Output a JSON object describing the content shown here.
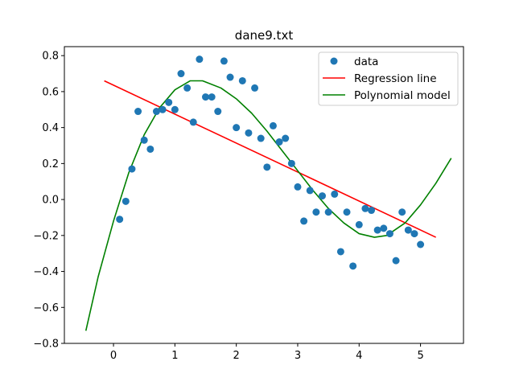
{
  "chart_data": {
    "type": "scatter",
    "title": "dane9.txt",
    "xlabel": "",
    "ylabel": "",
    "xlim": [
      -0.8,
      5.7
    ],
    "ylim": [
      -0.8,
      0.85
    ],
    "x_ticks": [
      0,
      1,
      2,
      3,
      4,
      5
    ],
    "y_ticks": [
      -0.8,
      -0.6,
      -0.4,
      -0.2,
      0.0,
      0.2,
      0.4,
      0.6,
      0.8
    ],
    "x_tick_labels": [
      "0",
      "1",
      "2",
      "3",
      "4",
      "5"
    ],
    "y_tick_labels": [
      "−0.8",
      "−0.6",
      "−0.4",
      "−0.2",
      "0.0",
      "0.2",
      "0.4",
      "0.6",
      "0.8"
    ],
    "grid": false,
    "legend_position": "top-right",
    "series": [
      {
        "name": "data",
        "type": "scatter",
        "color": "#1f77b4",
        "x": [
          0.1,
          0.2,
          0.3,
          0.4,
          0.5,
          0.6,
          0.7,
          0.8,
          0.9,
          1.0,
          1.1,
          1.2,
          1.3,
          1.4,
          1.5,
          1.6,
          1.7,
          1.8,
          1.9,
          2.0,
          2.1,
          2.2,
          2.3,
          2.4,
          2.5,
          2.6,
          2.7,
          2.8,
          2.9,
          3.0,
          3.1,
          3.2,
          3.3,
          3.4,
          3.5,
          3.6,
          3.7,
          3.8,
          3.9,
          4.0,
          4.1,
          4.2,
          4.3,
          4.4,
          4.5,
          4.6,
          4.7,
          4.8,
          4.9,
          5.0
        ],
        "y": [
          -0.11,
          -0.01,
          0.17,
          0.49,
          0.33,
          0.28,
          0.49,
          0.5,
          0.54,
          0.5,
          0.7,
          0.62,
          0.43,
          0.78,
          0.57,
          0.57,
          0.49,
          0.77,
          0.68,
          0.4,
          0.66,
          0.37,
          0.62,
          0.34,
          0.18,
          0.41,
          0.32,
          0.34,
          0.2,
          0.07,
          -0.12,
          0.05,
          -0.07,
          0.02,
          -0.07,
          0.03,
          -0.29,
          -0.07,
          -0.37,
          -0.14,
          -0.05,
          -0.06,
          -0.17,
          -0.16,
          -0.19,
          -0.34,
          -0.07,
          -0.17,
          -0.19,
          -0.25
        ]
      },
      {
        "name": "Regression line",
        "type": "line",
        "color": "#ff0000",
        "x": [
          -0.15,
          5.25
        ],
        "y": [
          0.66,
          -0.21
        ]
      },
      {
        "name": "Polynomial model",
        "type": "line",
        "color": "#008000",
        "x": [
          -0.45,
          -0.25,
          0.0,
          0.25,
          0.5,
          0.75,
          1.0,
          1.25,
          1.45,
          1.75,
          2.0,
          2.25,
          2.5,
          2.75,
          3.0,
          3.25,
          3.5,
          3.75,
          4.0,
          4.25,
          4.45,
          4.75,
          5.0,
          5.25,
          5.5
        ],
        "y": [
          -0.73,
          -0.43,
          -0.12,
          0.15,
          0.36,
          0.51,
          0.61,
          0.66,
          0.66,
          0.62,
          0.56,
          0.48,
          0.38,
          0.27,
          0.16,
          0.05,
          -0.05,
          -0.13,
          -0.19,
          -0.21,
          -0.2,
          -0.13,
          -0.03,
          0.09,
          0.23
        ]
      }
    ]
  }
}
